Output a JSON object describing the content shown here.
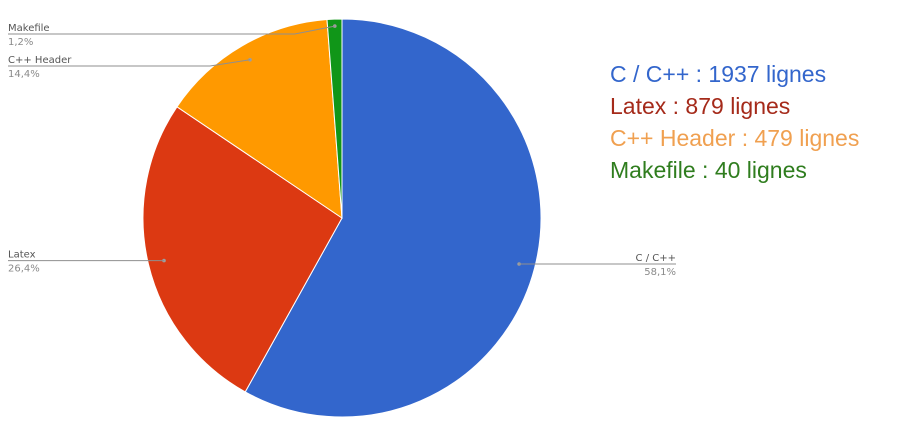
{
  "chart_data": {
    "type": "pie",
    "slices": [
      {
        "label": "C / C++",
        "percent_label": "58,1%",
        "value": 1937,
        "color": "#3366cc"
      },
      {
        "label": "Latex",
        "percent_label": "26,4%",
        "value": 879,
        "color": "#dc3912"
      },
      {
        "label": "C++ Header",
        "percent_label": "14,4%",
        "value": 479,
        "color": "#ff9900"
      },
      {
        "label": "Makefile",
        "percent_label": "1,2%",
        "value": 40,
        "color": "#109618"
      }
    ],
    "legend": {
      "placement": "right",
      "entries": [
        {
          "text": "C / C++ : 1937 lignes",
          "color": "#3366cc"
        },
        {
          "text": "Latex : 879 lignes",
          "color": "#a52a1a"
        },
        {
          "text": "C++ Header : 479 lignes",
          "color": "#f0a050"
        },
        {
          "text": "Makefile : 40 lignes",
          "color": "#2f7d1e"
        }
      ]
    }
  }
}
